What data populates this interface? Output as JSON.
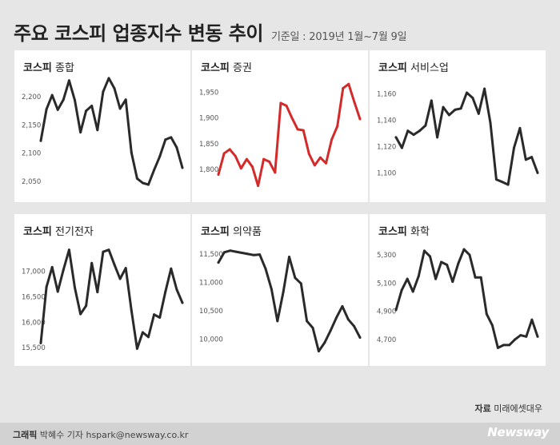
{
  "header": {
    "title": "주요 코스피 업종지수 변동 추이",
    "subtitle": "기준일 : 2019년 1월~7월 9일"
  },
  "footer": {
    "source_label": "자료",
    "source_value": "미래에셋대우",
    "credit_label": "그래픽",
    "credit_value": "박혜수 기자 hspark@newsway.co.kr",
    "logo": "Newsway"
  },
  "colors": {
    "line_default": "#2a2a2a",
    "line_highlight": "#d42a2a",
    "background": "#e6e6e6",
    "panel": "#ffffff"
  },
  "chart_data": [
    {
      "type": "line",
      "title_bold": "코스피",
      "title_rest": "종합",
      "color": "#2a2a2a",
      "ylim": [
        2030,
        2240
      ],
      "yticks": [
        2050,
        2100,
        2150,
        2200
      ],
      "ytick_labels": [
        "2,050",
        "2,100",
        "2,150",
        "2,200"
      ],
      "values": [
        2122,
        2178,
        2203,
        2177,
        2195,
        2229,
        2194,
        2137,
        2175,
        2184,
        2141,
        2209,
        2233,
        2215,
        2179,
        2195,
        2101,
        2055,
        2047,
        2044,
        2070,
        2094,
        2124,
        2128,
        2110,
        2074
      ]
    },
    {
      "type": "line",
      "title_bold": "코스피",
      "title_rest": "증권",
      "color": "#d42a2a",
      "ylim": [
        1755,
        1985
      ],
      "yticks": [
        1800,
        1850,
        1900,
        1950
      ],
      "ytick_labels": [
        "1,800",
        "1,850",
        "1,900",
        "1,950"
      ],
      "values": [
        1790,
        1831,
        1839,
        1826,
        1802,
        1820,
        1805,
        1768,
        1820,
        1815,
        1794,
        1929,
        1924,
        1900,
        1878,
        1876,
        1830,
        1808,
        1823,
        1812,
        1858,
        1884,
        1958,
        1966,
        1931,
        1898
      ]
    },
    {
      "type": "line",
      "title_bold": "코스피",
      "title_rest": "서비스업",
      "color": "#2a2a2a",
      "ylim": [
        1085,
        1175
      ],
      "yticks": [
        1100,
        1120,
        1140,
        1160
      ],
      "ytick_labels": [
        "1,100",
        "1,120",
        "1,140",
        "1,160"
      ],
      "values": [
        1127,
        1119,
        1132,
        1129,
        1132,
        1136,
        1155,
        1127,
        1150,
        1144,
        1148,
        1149,
        1161,
        1157,
        1145,
        1164,
        1138,
        1095,
        1093,
        1091,
        1119,
        1134,
        1110,
        1112,
        1100
      ]
    },
    {
      "type": "line",
      "title_bold": "코스피",
      "title_rest": "전기전자",
      "color": "#2a2a2a",
      "ylim": [
        15330,
        17650
      ],
      "yticks": [
        15500,
        16000,
        16500,
        17000
      ],
      "ytick_labels": [
        "15,500",
        "16,000",
        "16,500",
        "17,000"
      ],
      "values": [
        15590,
        16690,
        17080,
        16600,
        17030,
        17420,
        16680,
        16160,
        16320,
        17160,
        16590,
        17380,
        17420,
        17130,
        16850,
        17060,
        16230,
        15480,
        15800,
        15710,
        16150,
        16090,
        16600,
        17050,
        16640,
        16380
      ]
    },
    {
      "type": "line",
      "title_bold": "코스피",
      "title_rest": "의약품",
      "color": "#2a2a2a",
      "ylim": [
        9700,
        11780
      ],
      "yticks": [
        10000,
        10500,
        11000,
        11500
      ],
      "ytick_labels": [
        "10,000",
        "10,500",
        "11,000",
        "11,500"
      ],
      "values": [
        11350,
        11530,
        11560,
        11540,
        11520,
        11500,
        11480,
        11490,
        11240,
        10880,
        10320,
        10830,
        11450,
        11080,
        10980,
        10320,
        10200,
        9790,
        9940,
        10150,
        10380,
        10580,
        10350,
        10230,
        10030
      ]
    },
    {
      "type": "line",
      "title_bold": "코스피",
      "title_rest": "화학",
      "color": "#2a2a2a",
      "ylim": [
        4580,
        5420
      ],
      "yticks": [
        4700,
        4900,
        5100,
        5300
      ],
      "ytick_labels": [
        "4,700",
        "4,900",
        "5,100",
        "5,300"
      ],
      "values": [
        4910,
        5050,
        5130,
        5040,
        5150,
        5330,
        5290,
        5130,
        5250,
        5230,
        5110,
        5240,
        5340,
        5300,
        5140,
        5140,
        4880,
        4800,
        4640,
        4660,
        4660,
        4700,
        4730,
        4720,
        4840,
        4720
      ]
    }
  ]
}
